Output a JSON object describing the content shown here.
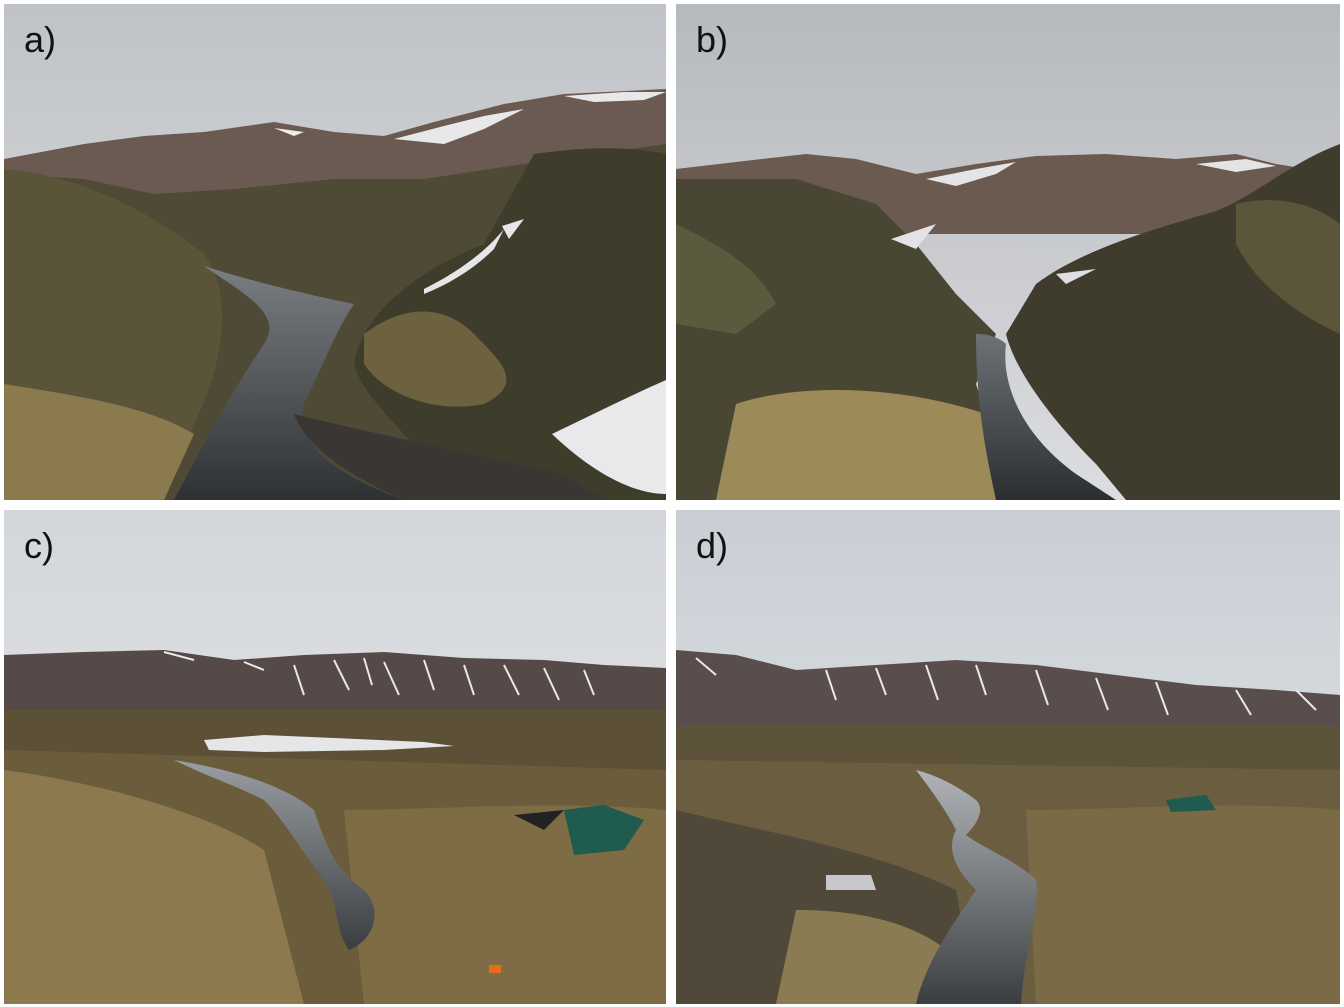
{
  "panels": [
    {
      "id": "a",
      "label": "a)"
    },
    {
      "id": "b",
      "label": "b)"
    },
    {
      "id": "c",
      "label": "c)"
    },
    {
      "id": "d",
      "label": "d)"
    }
  ]
}
